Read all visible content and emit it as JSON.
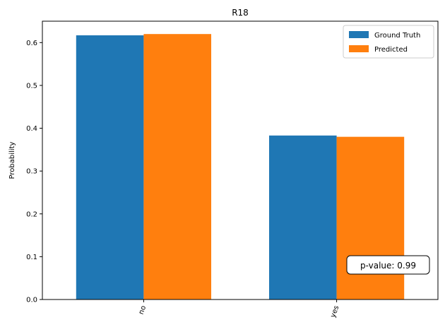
{
  "chart_data": {
    "type": "bar",
    "title": "R18",
    "xlabel": "",
    "ylabel": "Probability",
    "categories": [
      "no",
      "yes"
    ],
    "series": [
      {
        "name": "Ground Truth",
        "values": [
          0.617,
          0.383
        ],
        "color": "#1f77b4"
      },
      {
        "name": "Predicted",
        "values": [
          0.62,
          0.38
        ],
        "color": "#ff7f0e"
      }
    ],
    "ylim": [
      0,
      0.65
    ],
    "yticks": [
      "0.0",
      "0.1",
      "0.2",
      "0.3",
      "0.4",
      "0.5",
      "0.6"
    ],
    "legend_position": "top-right",
    "grid": false,
    "annotation": "p-value: 0.99"
  }
}
